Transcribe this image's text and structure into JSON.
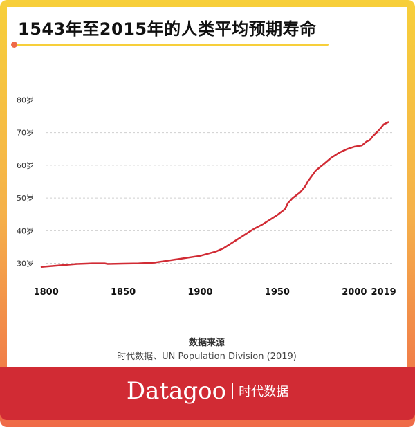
{
  "title": "1543年至2015年的人类平均预期寿命",
  "source": {
    "heading": "数据来源",
    "text": "时代数据、UN Population Division (2019)"
  },
  "brand": {
    "name": "Datagoo",
    "subtitle": "时代数据"
  },
  "colors": {
    "line": "#d12b34",
    "footer": "#d12b34",
    "frame_top": "#f7cf3a",
    "frame_bottom": "#ef6a48"
  },
  "chart_data": {
    "type": "line",
    "title": "1543年至2015年的人类平均预期寿命",
    "xlabel": "",
    "ylabel": "",
    "xlim": [
      1797,
      2025
    ],
    "ylim": [
      28,
      82
    ],
    "grid": true,
    "x_ticks": [
      {
        "value": 1800,
        "label": "1800"
      },
      {
        "value": 1850,
        "label": "1850"
      },
      {
        "value": 1900,
        "label": "1900"
      },
      {
        "value": 1950,
        "label": "1950"
      },
      {
        "value": 2000,
        "label": "2000"
      },
      {
        "value": 2019,
        "label": "2019"
      }
    ],
    "y_ticks": [
      {
        "value": 30,
        "label": "30岁"
      },
      {
        "value": 40,
        "label": "40岁"
      },
      {
        "value": 50,
        "label": "50岁"
      },
      {
        "value": 60,
        "label": "60岁"
      },
      {
        "value": 70,
        "label": "70岁"
      },
      {
        "value": 80,
        "label": "80岁"
      }
    ],
    "series": [
      {
        "x": [
          1797,
          1810,
          1820,
          1830,
          1838,
          1840,
          1850,
          1860,
          1870,
          1880,
          1890,
          1900,
          1910,
          1915,
          1920,
          1925,
          1930,
          1935,
          1940,
          1945,
          1950,
          1955,
          1957,
          1960,
          1965,
          1968,
          1970,
          1975,
          1980,
          1985,
          1990,
          1995,
          2000,
          2005,
          2008,
          2010,
          2012,
          2015,
          2017,
          2019,
          2022
        ],
        "y": [
          28.9,
          29.4,
          29.8,
          30.0,
          30.0,
          29.8,
          29.9,
          30.0,
          30.2,
          30.9,
          31.6,
          32.3,
          33.6,
          34.6,
          36.1,
          37.6,
          39.1,
          40.6,
          41.8,
          43.3,
          44.8,
          46.6,
          48.5,
          50.0,
          51.8,
          53.5,
          55.2,
          58.4,
          60.3,
          62.3,
          63.8,
          64.9,
          65.7,
          66.1,
          67.3,
          67.7,
          68.9,
          70.3,
          71.3,
          72.5,
          73.2
        ]
      }
    ]
  }
}
